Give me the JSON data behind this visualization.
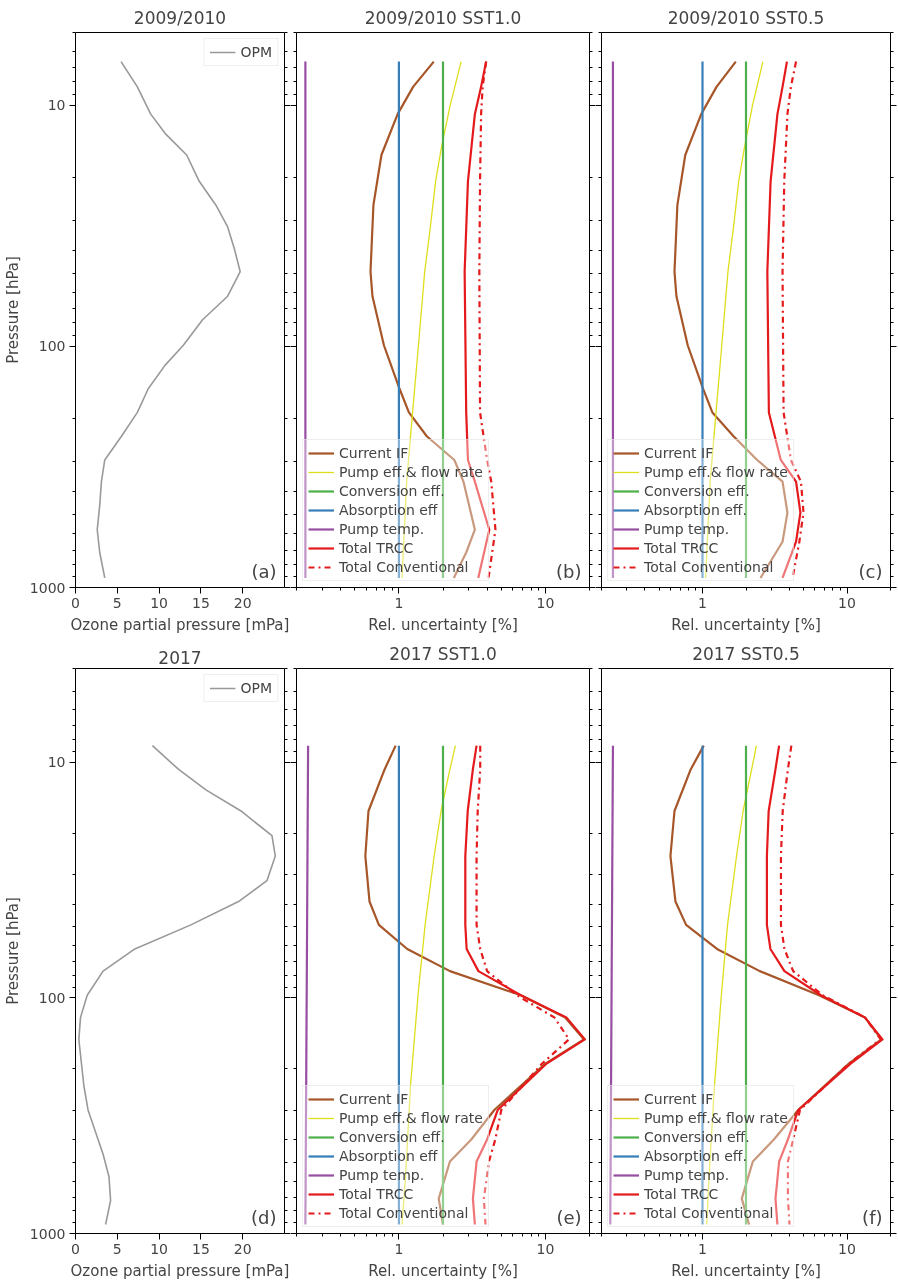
{
  "chart_data": [
    {
      "type": "line",
      "title": "2009/2010",
      "xlabel": "Ozone partial pressure [mPa]",
      "ylabel": "Pressure [hPa]",
      "xlim": [
        0,
        25
      ],
      "ylim": [
        1000,
        5
      ],
      "xticks": [
        0,
        5,
        10,
        15,
        20
      ],
      "yticks": [
        10,
        100,
        1000
      ],
      "log": "y",
      "legend": "top right",
      "annotations": [
        "(a)"
      ],
      "series": [
        {
          "name": "OPM",
          "color": "#999999",
          "line_style": "solid",
          "x": [
            5.45,
            7.4,
            9.0,
            10.8,
            13.3,
            14.8,
            16.8,
            18.2,
            19.0,
            19.7,
            18.2,
            15.2,
            12.9,
            10.7,
            8.7,
            7.4,
            5.5,
            3.5,
            3.1,
            2.9,
            2.6,
            2.9,
            3.5
          ],
          "values": [
            6.6,
            8.4,
            10.9,
            13.2,
            16.1,
            20.7,
            26,
            32,
            39.4,
            49,
            62,
            77.6,
            99,
            120,
            150,
            188,
            236,
            296,
            364,
            455,
            576,
            716,
            913
          ]
        }
      ]
    },
    {
      "type": "line",
      "title": "2009/2010 SST1.0",
      "xlabel": "Rel. uncertainty [%]",
      "xlim": [
        0.2,
        20
      ],
      "ylim": [
        1000,
        5
      ],
      "xticks": [
        1,
        10
      ],
      "yticks": [
        10,
        100,
        1000
      ],
      "log": "xy",
      "tick_labels": "x",
      "legend": "bottom left",
      "annotations": [
        "(b)"
      ],
      "series": [
        {
          "name": "Current IF",
          "color": "#a65628",
          "line_style": "solid",
          "x": [
            1.73,
            1.25,
            0.98,
            0.76,
            0.67,
            0.64,
            0.66,
            0.79,
            1.01,
            1.17,
            1.55,
            2.39,
            2.76,
            3.3,
            2.88,
            2.37
          ],
          "values": [
            6.6,
            8.4,
            10.9,
            16.1,
            26,
            49,
            62,
            99,
            150,
            188,
            236,
            296,
            364,
            576,
            716,
            913
          ]
        },
        {
          "name": "Pump eff.& flow rate",
          "color": "#dede1c",
          "line_style": "solid",
          "x": [
            2.66,
            2.24,
            1.95,
            1.78,
            1.64,
            1.5,
            1.36,
            1.24,
            1.13,
            1.05
          ],
          "values": [
            6.6,
            10,
            15,
            20.7,
            32,
            49,
            99,
            188,
            364,
            913
          ]
        },
        {
          "name": "Conversion eff.",
          "color": "#4daf4a",
          "line_style": "solid",
          "x": [
            2.0,
            2.0
          ],
          "values": [
            6.6,
            913
          ]
        },
        {
          "name": "Absorption eff",
          "color": "#377eb8",
          "line_style": "solid",
          "x": [
            1.0,
            1.0
          ],
          "values": [
            6.6,
            913
          ]
        },
        {
          "name": "Pump temp.",
          "color": "#984ea3",
          "line_style": "solid",
          "x": [
            0.23,
            0.23
          ],
          "values": [
            6.6,
            913
          ]
        },
        {
          "name": "Total TRCC",
          "color": "#e41a1c",
          "line_style": "solid",
          "x": [
            3.94,
            3.64,
            3.3,
            2.96,
            2.81,
            2.88,
            2.96,
            3.3,
            4.14,
            3.48
          ],
          "values": [
            6.6,
            8.4,
            10.9,
            20.7,
            49,
            188,
            296,
            364,
            576,
            913
          ]
        },
        {
          "name": "Total Conventional",
          "color": "#e41a1c",
          "line_style": "dashdot",
          "x": [
            3.94,
            3.73,
            3.64,
            3.58,
            3.54,
            3.58,
            4.0,
            4.27,
            4.56,
            4.09
          ],
          "values": [
            6.6,
            8.4,
            10.9,
            20.7,
            49,
            188,
            296,
            364,
            576,
            913
          ]
        }
      ]
    },
    {
      "type": "line",
      "title": "2009/2010 SST0.5",
      "xlabel": "Rel. uncertainty [%]",
      "xlim": [
        0.2,
        20
      ],
      "ylim": [
        1000,
        5
      ],
      "xticks": [
        1,
        10
      ],
      "yticks": [
        10,
        100,
        1000
      ],
      "log": "xy",
      "tick_labels": "x",
      "legend": "bottom left",
      "annotations": [
        "(c)"
      ],
      "series": [
        {
          "name": "Current IF",
          "color": "#a65628",
          "line_style": "solid",
          "x": [
            1.7,
            1.25,
            0.98,
            0.76,
            0.67,
            0.64,
            0.66,
            0.79,
            1.01,
            1.17,
            1.64,
            2.39,
            3.58,
            3.87,
            3.58,
            2.52
          ],
          "values": [
            6.6,
            8.4,
            10.9,
            16.1,
            26,
            49,
            62,
            99,
            150,
            188,
            236,
            296,
            364,
            489,
            646,
            913
          ]
        },
        {
          "name": "Pump eff.& flow rate",
          "color": "#dede1c",
          "line_style": "solid",
          "x": [
            2.62,
            2.22,
            1.95,
            1.78,
            1.64,
            1.5,
            1.36,
            1.24,
            1.13,
            1.05
          ],
          "values": [
            6.6,
            10,
            15,
            20.7,
            32,
            49,
            99,
            188,
            364,
            913
          ]
        },
        {
          "name": "Conversion eff.",
          "color": "#4daf4a",
          "line_style": "solid",
          "x": [
            2.0,
            2.0
          ],
          "values": [
            6.6,
            913
          ]
        },
        {
          "name": "Absorption eff.",
          "color": "#377eb8",
          "line_style": "solid",
          "x": [
            1.0,
            1.0
          ],
          "values": [
            6.6,
            913
          ]
        },
        {
          "name": "Pump temp.",
          "color": "#984ea3",
          "line_style": "solid",
          "x": [
            0.24,
            0.24
          ],
          "values": [
            6.6,
            913
          ]
        },
        {
          "name": "Total TRCC",
          "color": "#e41a1c",
          "line_style": "solid",
          "x": [
            3.84,
            3.58,
            3.3,
            2.96,
            2.81,
            2.88,
            3.48,
            4.44,
            4.76,
            4.44,
            3.58
          ],
          "values": [
            6.6,
            8.4,
            10.9,
            20.7,
            49,
            188,
            296,
            364,
            489,
            646,
            913
          ]
        },
        {
          "name": "Total Conventional",
          "color": "#e41a1c",
          "line_style": "dashdot",
          "x": [
            4.44,
            4.09,
            3.87,
            3.68,
            3.58,
            3.64,
            4.09,
            4.8,
            5.0,
            4.68,
            4.2
          ],
          "values": [
            6.6,
            8.4,
            10.9,
            20.7,
            49,
            188,
            296,
            364,
            489,
            646,
            913
          ]
        }
      ]
    },
    {
      "type": "line",
      "title": "2017",
      "xlabel": "Ozone partial pressure [mPa]",
      "ylabel": "Pressure [hPa]",
      "xlim": [
        0,
        25
      ],
      "ylim": [
        1000,
        4
      ],
      "xticks": [
        0,
        5,
        10,
        15,
        20
      ],
      "yticks": [
        10,
        100,
        1000
      ],
      "log": "y",
      "legend": "top right",
      "annotations": [
        "(d)"
      ],
      "series": [
        {
          "name": "OPM",
          "color": "#999999",
          "line_style": "solid",
          "x": [
            9.2,
            12.3,
            15.6,
            19.8,
            23.5,
            23.9,
            22.9,
            19.5,
            13.8,
            7.1,
            3.3,
            1.4,
            0.6,
            0.4,
            1.0,
            1.5,
            3.3,
            4.0,
            4.2,
            3.6
          ],
          "values": [
            8.5,
            10.7,
            13.1,
            16.1,
            20.5,
            25,
            31.8,
            39,
            49,
            62,
            77,
            97.5,
            121,
            150,
            236,
            299,
            461,
            573,
            724,
            916
          ]
        }
      ]
    },
    {
      "type": "line",
      "title": "2017 SST1.0",
      "xlabel": "Rel. uncertainty [%]",
      "xlim": [
        0.2,
        20
      ],
      "ylim": [
        1000,
        4
      ],
      "xticks": [
        1,
        10
      ],
      "yticks": [
        10,
        100,
        1000
      ],
      "log": "xy",
      "tick_labels": "x",
      "legend": "bottom left",
      "annotations": [
        "(e)"
      ],
      "series": [
        {
          "name": "Current IF",
          "color": "#a65628",
          "line_style": "solid",
          "x": [
            0.95,
            0.8,
            0.62,
            0.59,
            0.63,
            0.73,
            1.14,
            2.23,
            6.8,
            13.6,
            18.3,
            10.0,
            4.48,
            3.12,
            2.23,
            1.87,
            2.0
          ],
          "values": [
            8.5,
            10.7,
            16.1,
            25,
            39,
            49,
            62,
            77,
            97.5,
            121,
            150,
            190,
            299,
            399,
            495,
            711,
            916
          ]
        },
        {
          "name": "Pump eff.& flow rate",
          "color": "#dede1c",
          "line_style": "solid",
          "x": [
            2.43,
            2.23,
            1.94,
            1.74,
            1.51,
            1.35,
            1.2,
            1.11,
            1.05
          ],
          "values": [
            8.5,
            10.7,
            16.1,
            25,
            49,
            97.5,
            236,
            573,
            916
          ]
        },
        {
          "name": "Conversion eff.",
          "color": "#4daf4a",
          "line_style": "solid",
          "x": [
            2.0,
            2.0
          ],
          "values": [
            8.5,
            916
          ]
        },
        {
          "name": "Absorption eff",
          "color": "#377eb8",
          "line_style": "solid",
          "x": [
            1.0,
            1.0
          ],
          "values": [
            8.5,
            916
          ]
        },
        {
          "name": "Pump temp.",
          "color": "#984ea3",
          "line_style": "solid",
          "x": [
            0.24,
            0.23
          ],
          "values": [
            8.5,
            916
          ]
        },
        {
          "name": "Total TRCC",
          "color": "#e41a1c",
          "line_style": "solid",
          "x": [
            3.39,
            3.2,
            2.95,
            2.84,
            2.84,
            2.9,
            3.49,
            6.8,
            13.9,
            18.6,
            10.2,
            4.73,
            4.0,
            3.39,
            3.2,
            3.3
          ],
          "values": [
            8.5,
            10.7,
            16.1,
            25,
            49,
            62,
            77,
            97.5,
            121,
            150,
            190,
            299,
            399,
            495,
            711,
            916
          ]
        },
        {
          "name": "Total Conventional",
          "color": "#e41a1c",
          "line_style": "dashdot",
          "x": [
            3.59,
            3.59,
            3.45,
            3.39,
            3.39,
            3.59,
            4.0,
            6.4,
            11.5,
            14.5,
            9.5,
            5.0,
            4.55,
            4.12,
            3.8,
            3.9
          ],
          "values": [
            8.5,
            10.7,
            16.1,
            25,
            49,
            62,
            77,
            97.5,
            121,
            150,
            190,
            299,
            399,
            495,
            711,
            916
          ]
        }
      ]
    },
    {
      "type": "line",
      "title": "2017 SST0.5",
      "xlabel": "Rel. uncertainty [%]",
      "xlim": [
        0.2,
        20
      ],
      "ylim": [
        1000,
        4
      ],
      "xticks": [
        1,
        10
      ],
      "yticks": [
        10,
        100,
        1000
      ],
      "log": "xy",
      "tick_labels": "x",
      "legend": "bottom left",
      "annotations": [
        "(f)"
      ],
      "series": [
        {
          "name": "Current IF",
          "color": "#a65628",
          "line_style": "solid",
          "x": [
            1.02,
            0.83,
            0.64,
            0.6,
            0.65,
            0.77,
            1.26,
            2.49,
            6.4,
            13.3,
            17.3,
            10.3,
            4.6,
            3.12,
            2.23,
            1.87,
            2.1
          ],
          "values": [
            8.5,
            10.7,
            16.1,
            25,
            39,
            49,
            62,
            77,
            97.5,
            121,
            150,
            190,
            299,
            399,
            495,
            711,
            916
          ]
        },
        {
          "name": "Pump eff.& flow rate",
          "color": "#dede1c",
          "line_style": "solid",
          "x": [
            2.36,
            2.19,
            1.91,
            1.72,
            1.49,
            1.35,
            1.21,
            1.11,
            1.07
          ],
          "values": [
            8.5,
            10.7,
            16.1,
            25,
            49,
            97.5,
            236,
            573,
            916
          ]
        },
        {
          "name": "Conversion eff.",
          "color": "#4daf4a",
          "line_style": "solid",
          "x": [
            2.0,
            2.0
          ],
          "values": [
            8.5,
            916
          ]
        },
        {
          "name": "Absorption eff.",
          "color": "#377eb8",
          "line_style": "solid",
          "x": [
            1.0,
            1.0
          ],
          "values": [
            8.5,
            916
          ]
        },
        {
          "name": "Pump temp.",
          "color": "#984ea3",
          "line_style": "solid",
          "x": [
            0.24,
            0.23
          ],
          "values": [
            8.5,
            916
          ]
        },
        {
          "name": "Total TRCC",
          "color": "#e41a1c",
          "line_style": "solid",
          "x": [
            3.39,
            3.2,
            2.87,
            2.79,
            2.79,
            2.95,
            3.69,
            6.6,
            13.3,
            17.6,
            10.6,
            4.6,
            3.9,
            3.39,
            3.2,
            3.3
          ],
          "values": [
            8.5,
            10.7,
            16.1,
            25,
            49,
            62,
            77,
            97.5,
            121,
            150,
            190,
            299,
            399,
            495,
            711,
            916
          ]
        },
        {
          "name": "Total Conventional",
          "color": "#e41a1c",
          "line_style": "dashdot",
          "x": [
            4.12,
            3.9,
            3.59,
            3.49,
            3.49,
            3.69,
            4.24,
            6.8,
            13.3,
            17.1,
            10.3,
            4.73,
            4.24,
            3.9,
            3.9,
            4.0
          ],
          "values": [
            8.5,
            10.7,
            16.1,
            25,
            49,
            62,
            77,
            97.5,
            121,
            150,
            190,
            299,
            399,
            495,
            711,
            916
          ]
        }
      ]
    }
  ]
}
